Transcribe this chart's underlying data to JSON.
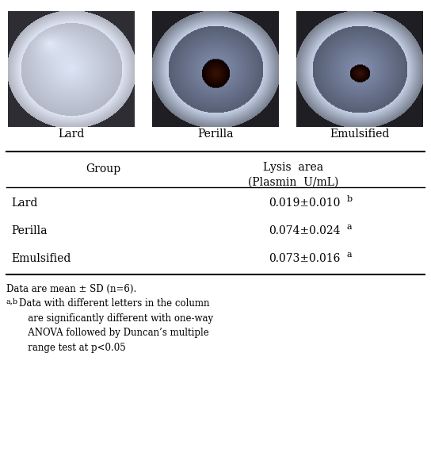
{
  "image_labels": [
    "Lard",
    "Perilla",
    "Emulsified"
  ],
  "col_header_1": "Group",
  "col_header_2_line1": "Lysis  area",
  "col_header_2_line2": "(Plasmin  U/mL)",
  "rows": [
    {
      "group": "Lard",
      "value": "0.019±0.010",
      "superscript": "b"
    },
    {
      "group": "Perilla",
      "value": "0.074±0.024",
      "superscript": "a"
    },
    {
      "group": "Emulsified",
      "value": "0.073±0.016",
      "superscript": "a"
    }
  ],
  "footnote1": "Data are mean ± SD (n=6).",
  "footnote2_prefix": "a,b",
  "footnote2_body": "Data with different letters in the column\nare significantly different with one-way\nANOVA followed by Duncan’s multiple\nrange test at p<0.05",
  "bg_color": "#ffffff",
  "line_color": "#000000",
  "font_size_label": 10,
  "font_size_header": 10,
  "font_size_table": 10,
  "font_size_footnote": 8.5
}
